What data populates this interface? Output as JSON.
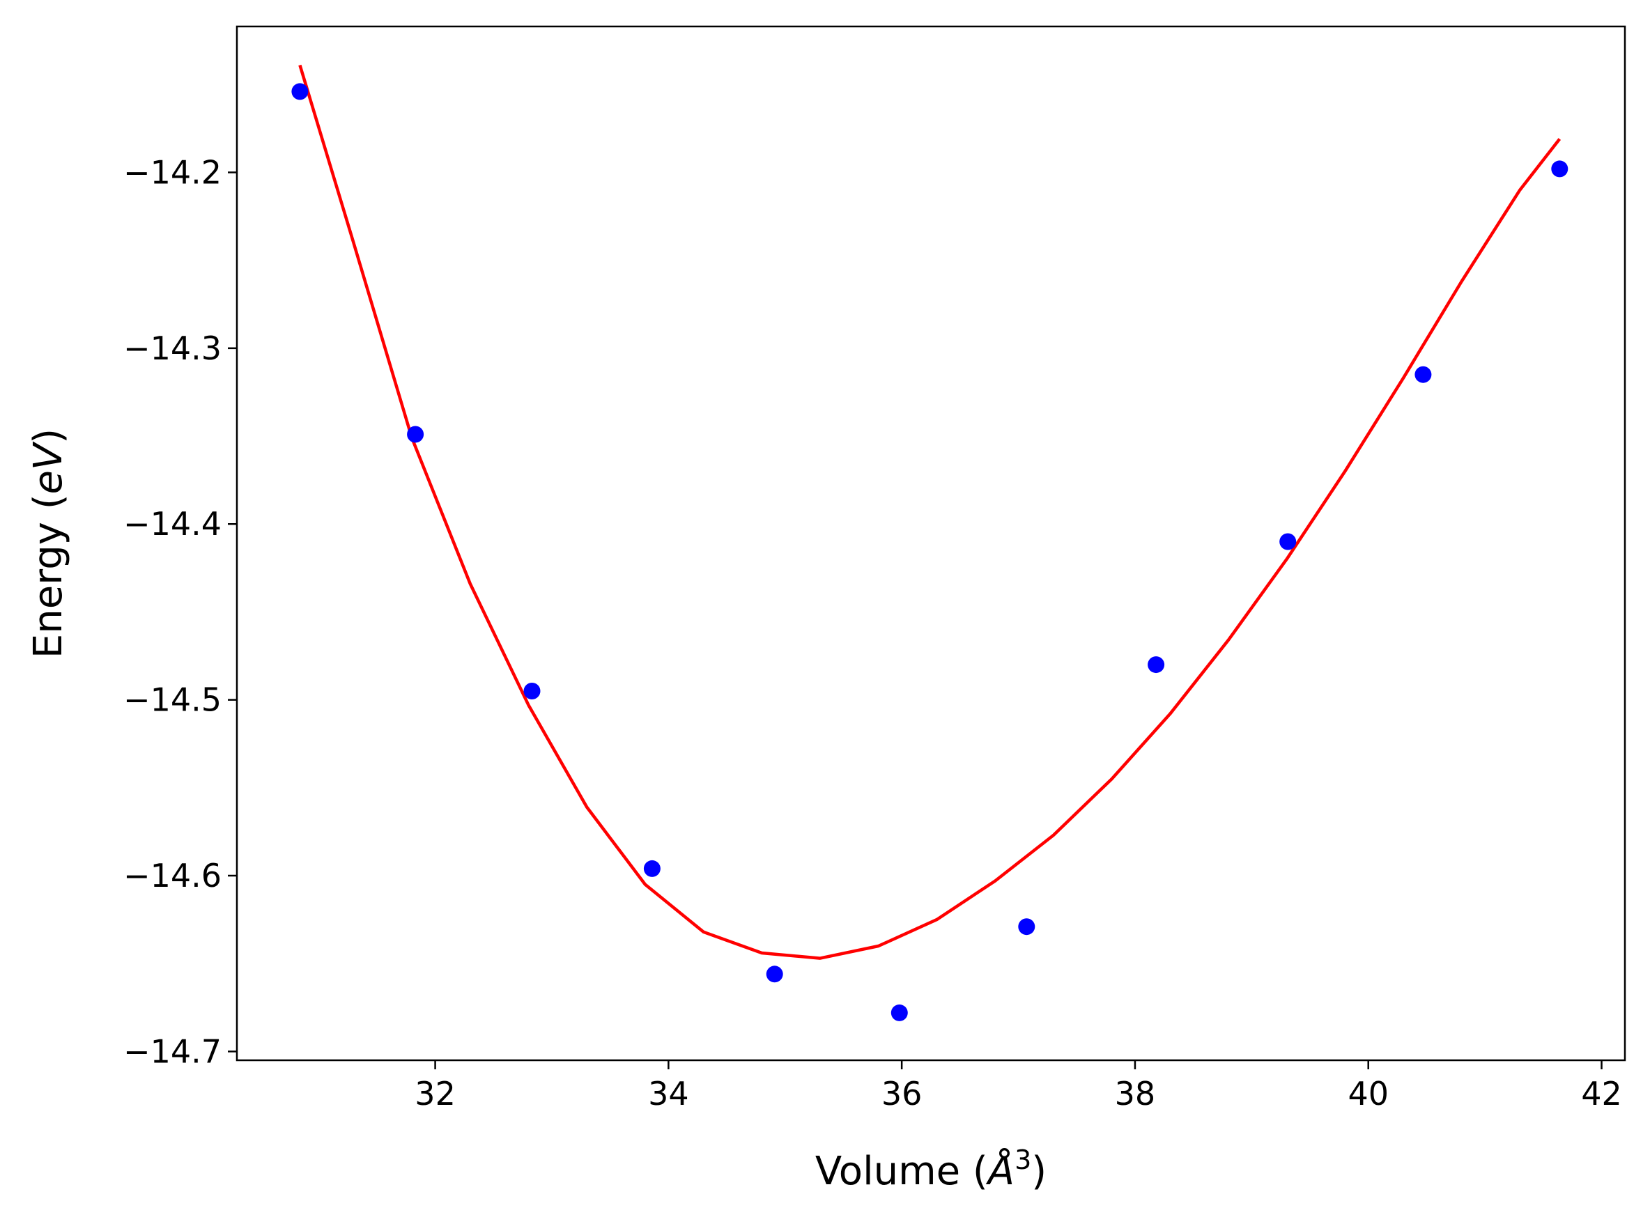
{
  "chart_data": {
    "type": "scatter",
    "title": "",
    "xlabel": {
      "prefix": "Volume (",
      "italic": "Å",
      "sup": "3",
      "suffix": ")"
    },
    "ylabel": {
      "prefix": "Energy (",
      "italic": "eV",
      "suffix": ")"
    },
    "xlim": [
      30.3,
      42.2
    ],
    "ylim": [
      -14.705,
      -14.117
    ],
    "xticks": [
      32,
      34,
      36,
      38,
      40,
      42
    ],
    "xtick_labels": [
      "32",
      "34",
      "36",
      "38",
      "40",
      "42"
    ],
    "yticks": [
      -14.2,
      -14.3,
      -14.4,
      -14.5,
      -14.6,
      -14.7
    ],
    "ytick_labels": [
      "−14.2",
      "−14.3",
      "−14.4",
      "−14.5",
      "−14.6",
      "−14.7"
    ],
    "grid": false,
    "series": [
      {
        "kind": "scatter",
        "color": "#0000ff",
        "x": [
          30.84,
          31.83,
          32.83,
          33.86,
          34.91,
          35.98,
          37.07,
          38.18,
          39.31,
          40.47,
          41.64
        ],
        "y": [
          -14.154,
          -14.349,
          -14.495,
          -14.596,
          -14.656,
          -14.678,
          -14.629,
          -14.48,
          -14.41,
          -14.315,
          -14.198
        ]
      },
      {
        "kind": "line",
        "color": "#ff0000",
        "x": [
          30.84,
          31.3,
          31.8,
          32.3,
          32.8,
          33.3,
          33.8,
          34.3,
          34.8,
          35.3,
          35.8,
          36.3,
          36.8,
          37.3,
          37.8,
          38.3,
          38.8,
          39.3,
          39.8,
          40.3,
          40.8,
          41.3,
          41.64
        ],
        "y": [
          -14.139,
          -14.24,
          -14.351,
          -14.434,
          -14.503,
          -14.561,
          -14.605,
          -14.632,
          -14.644,
          -14.647,
          -14.64,
          -14.625,
          -14.603,
          -14.577,
          -14.545,
          -14.508,
          -14.466,
          -14.42,
          -14.37,
          -14.317,
          -14.262,
          -14.21,
          -14.181
        ]
      }
    ]
  }
}
